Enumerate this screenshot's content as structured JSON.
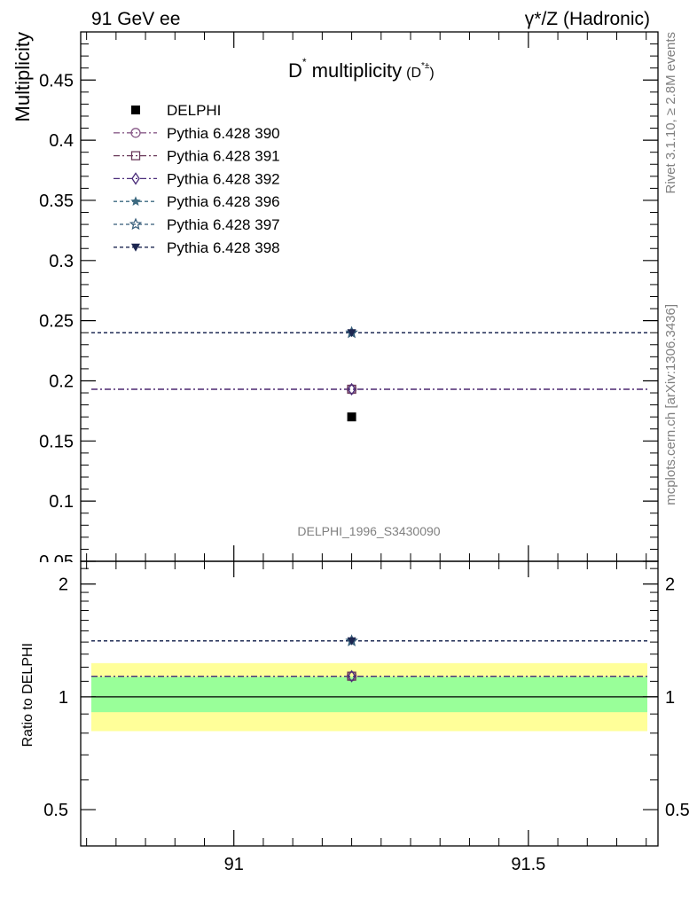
{
  "header": {
    "left": "91 GeV ee",
    "right": "γ*/Z (Hadronic)"
  },
  "side_labels": {
    "rivet": "Rivet 3.1.10, ≥ 2.8M events",
    "mcplots": "mcplots.cern.ch [arXiv:1306.3436]"
  },
  "chart_data": [
    {
      "panel": "main",
      "type": "scatter",
      "title": "D* multiplicity (D*±)",
      "title_parts": {
        "main": "D",
        "sup": "*",
        "rest": " multiplicity",
        "small": "(D",
        "small_sup": "*±",
        "small_end": ")"
      },
      "ylabel": "Multiplicity",
      "analysis": "DELPHI_1996_S3430090",
      "xlim": [
        90.74,
        91.72
      ],
      "ylim": [
        0.05,
        0.49
      ],
      "y_ticks": [
        0.05,
        0.1,
        0.15,
        0.2,
        0.25,
        0.3,
        0.35,
        0.4,
        0.45
      ],
      "y_tick_labels": [
        "0.05",
        "0.1",
        "0.15",
        "0.2",
        "0.25",
        "0.3",
        "0.35",
        "0.4",
        "0.45"
      ],
      "legend_placement": "top-left",
      "data": {
        "name": "DELPHI",
        "x": 91.2,
        "y": 0.17,
        "color": "#000000",
        "marker": "filled-square"
      },
      "series": [
        {
          "name": "Pythia 6.428 390",
          "x": 91.2,
          "y": 0.193,
          "color": "#8a5c8a",
          "dash": "dashdot",
          "marker": "open-circle"
        },
        {
          "name": "Pythia 6.428 391",
          "x": 91.2,
          "y": 0.193,
          "color": "#6a3a5a",
          "dash": "dashdot",
          "marker": "open-square"
        },
        {
          "name": "Pythia 6.428 392",
          "x": 91.2,
          "y": 0.193,
          "color": "#4b2d7a",
          "dash": "dashdot",
          "marker": "open-diamond"
        },
        {
          "name": "Pythia 6.428 396",
          "x": 91.2,
          "y": 0.24,
          "color": "#3d6a80",
          "dash": "dashed",
          "marker": "filled-star"
        },
        {
          "name": "Pythia 6.428 397",
          "x": 91.2,
          "y": 0.24,
          "color": "#345b78",
          "dash": "dashed",
          "marker": "open-star"
        },
        {
          "name": "Pythia 6.428 398",
          "x": 91.2,
          "y": 0.24,
          "color": "#1c2650",
          "dash": "dashed",
          "marker": "filled-triangle-down"
        }
      ]
    },
    {
      "panel": "ratio",
      "type": "line",
      "ylabel": "Ratio to DELPHI",
      "xlim": [
        90.74,
        91.72
      ],
      "ylim": [
        0.4,
        2.3
      ],
      "log_y": true,
      "x_ticks": [
        91,
        91.5
      ],
      "x_tick_labels": [
        "91",
        "91.5"
      ],
      "y_ticks": [
        0.5,
        1,
        2
      ],
      "y_tick_labels": [
        "0.5",
        "1",
        "2"
      ],
      "bands": [
        {
          "lo": 0.81,
          "hi": 1.23,
          "color": "#ffff99"
        },
        {
          "lo": 0.91,
          "hi": 1.13,
          "color": "#99ff99"
        }
      ],
      "series": [
        {
          "name": "Pythia 6.428 390",
          "y": 1.135,
          "color": "#8a5c8a",
          "dash": "dashdot",
          "marker": "open-circle"
        },
        {
          "name": "Pythia 6.428 391",
          "y": 1.135,
          "color": "#6a3a5a",
          "dash": "dashdot",
          "marker": "open-square"
        },
        {
          "name": "Pythia 6.428 392",
          "y": 1.135,
          "color": "#4b2d7a",
          "dash": "dashdot",
          "marker": "open-diamond"
        },
        {
          "name": "Pythia 6.428 396",
          "y": 1.41,
          "color": "#3d6a80",
          "dash": "dashed",
          "marker": "filled-star"
        },
        {
          "name": "Pythia 6.428 397",
          "y": 1.41,
          "color": "#345b78",
          "dash": "dashed",
          "marker": "open-star"
        },
        {
          "name": "Pythia 6.428 398",
          "y": 1.41,
          "color": "#1c2650",
          "dash": "dashed",
          "marker": "filled-triangle-down"
        }
      ]
    }
  ]
}
